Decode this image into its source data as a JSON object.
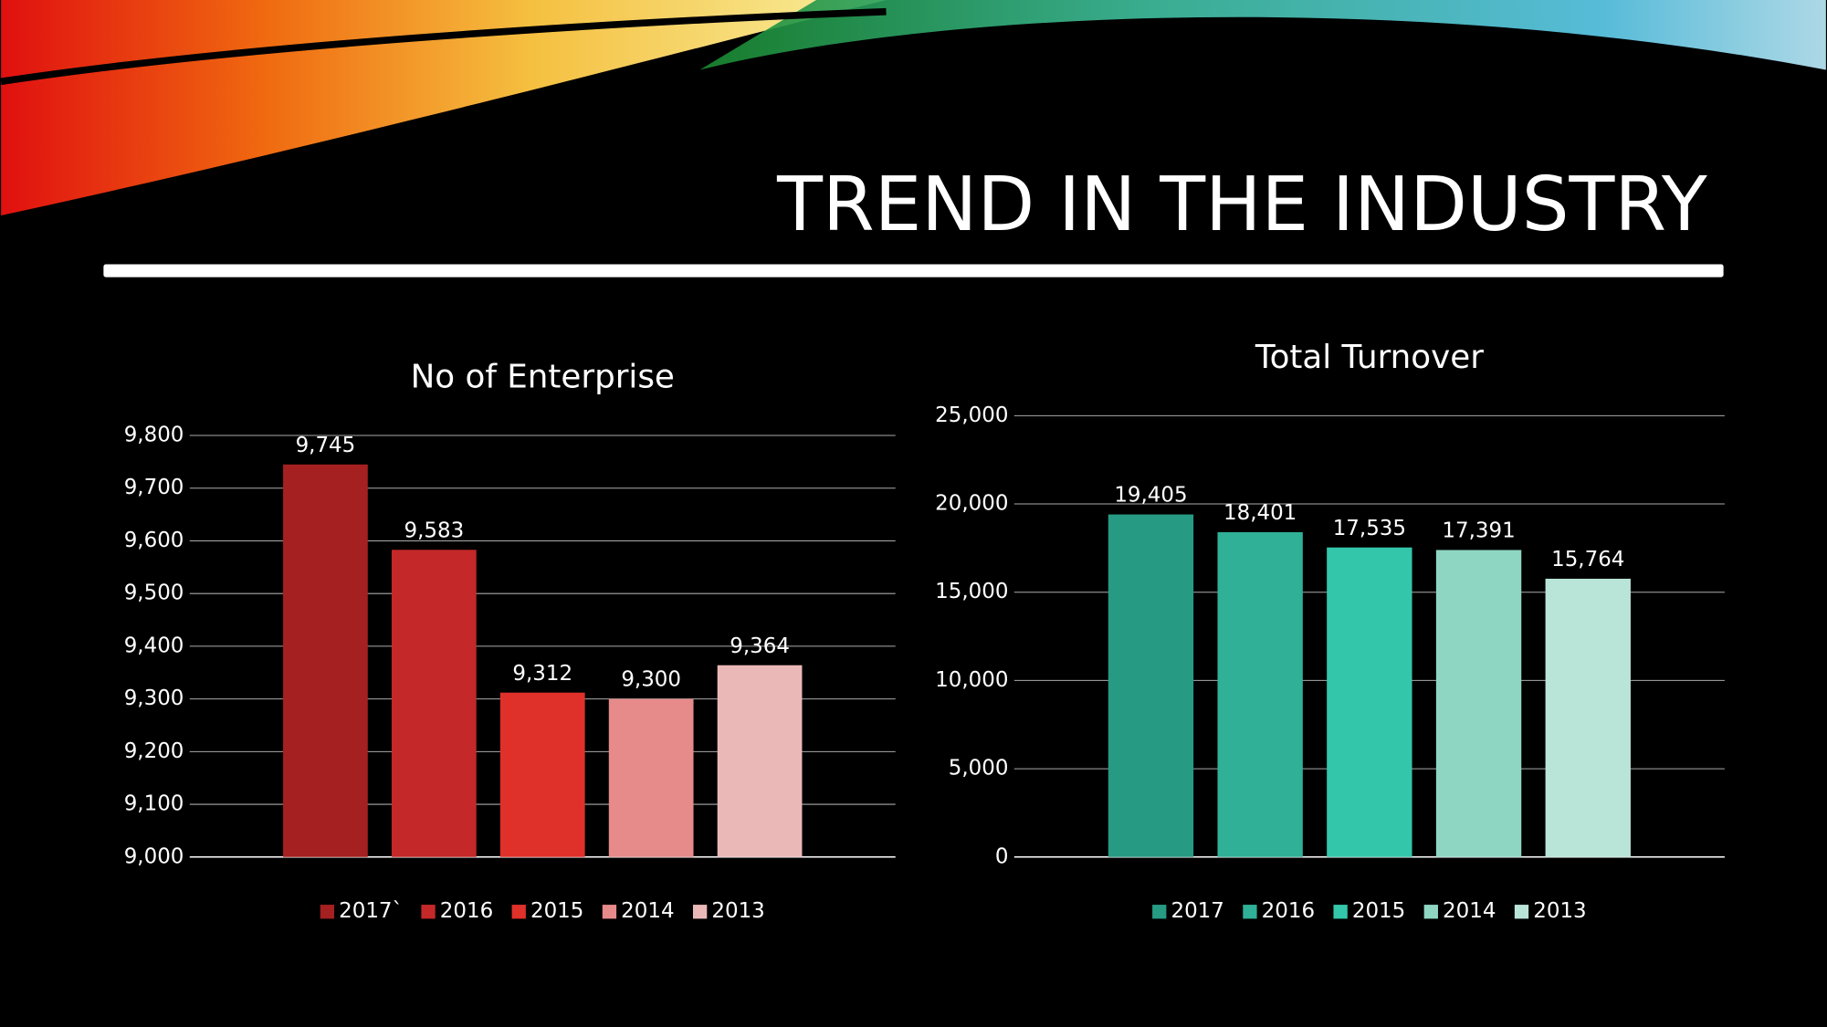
{
  "title": "TREND IN THE INDUSTRY",
  "chart_data": [
    {
      "type": "bar",
      "title": "No of Enterprise",
      "series": [
        {
          "name": "2017`",
          "color": "#a52020",
          "values": [
            9745
          ],
          "value_labels": [
            "9,745"
          ]
        },
        {
          "name": "2016",
          "color": "#c42828",
          "values": [
            9583
          ],
          "value_labels": [
            "9,583"
          ]
        },
        {
          "name": "2015",
          "color": "#e0302a",
          "values": [
            9312
          ],
          "value_labels": [
            "9,312"
          ]
        },
        {
          "name": "2014",
          "color": "#e68a8a",
          "values": [
            9300
          ],
          "value_labels": [
            "9,300"
          ]
        },
        {
          "name": "2013",
          "color": "#ebb8b8",
          "values": [
            9364
          ],
          "value_labels": [
            "9,364"
          ]
        }
      ],
      "ylim": [
        9000,
        9800
      ],
      "yticks": [
        {
          "value": 9000,
          "label": "9,000"
        },
        {
          "value": 9100,
          "label": "9,100"
        },
        {
          "value": 9200,
          "label": "9,200"
        },
        {
          "value": 9300,
          "label": "9,300"
        },
        {
          "value": 9400,
          "label": "9,400"
        },
        {
          "value": 9500,
          "label": "9,500"
        },
        {
          "value": 9600,
          "label": "9,600"
        },
        {
          "value": 9700,
          "label": "9,700"
        },
        {
          "value": 9800,
          "label": "9,800"
        }
      ],
      "grid": true,
      "legend": "bottom"
    },
    {
      "type": "bar",
      "title": "Total Turnover",
      "series": [
        {
          "name": "2017",
          "color": "#279a84",
          "values": [
            19405
          ],
          "value_labels": [
            "19,405"
          ]
        },
        {
          "name": "2016",
          "color": "#2fb097",
          "values": [
            18401
          ],
          "value_labels": [
            "18,401"
          ]
        },
        {
          "name": "2015",
          "color": "#34c6aa",
          "values": [
            17535
          ],
          "value_labels": [
            "17,535"
          ]
        },
        {
          "name": "2014",
          "color": "#8ed6c2",
          "values": [
            17391
          ],
          "value_labels": [
            "17,391"
          ]
        },
        {
          "name": "2013",
          "color": "#b9e4d8",
          "values": [
            15764
          ],
          "value_labels": [
            "15,764"
          ]
        }
      ],
      "ylim": [
        0,
        25000
      ],
      "yticks": [
        0,
        {
          "value": 5000,
          "label": "5,000"
        },
        {
          "value": 10000,
          "label": "10,000"
        },
        {
          "value": 15000,
          "label": "15,000"
        },
        {
          "value": 20000,
          "label": "20,000"
        },
        {
          "value": 25000,
          "label": "25,000"
        }
      ],
      "grid": true,
      "legend": "bottom"
    }
  ]
}
